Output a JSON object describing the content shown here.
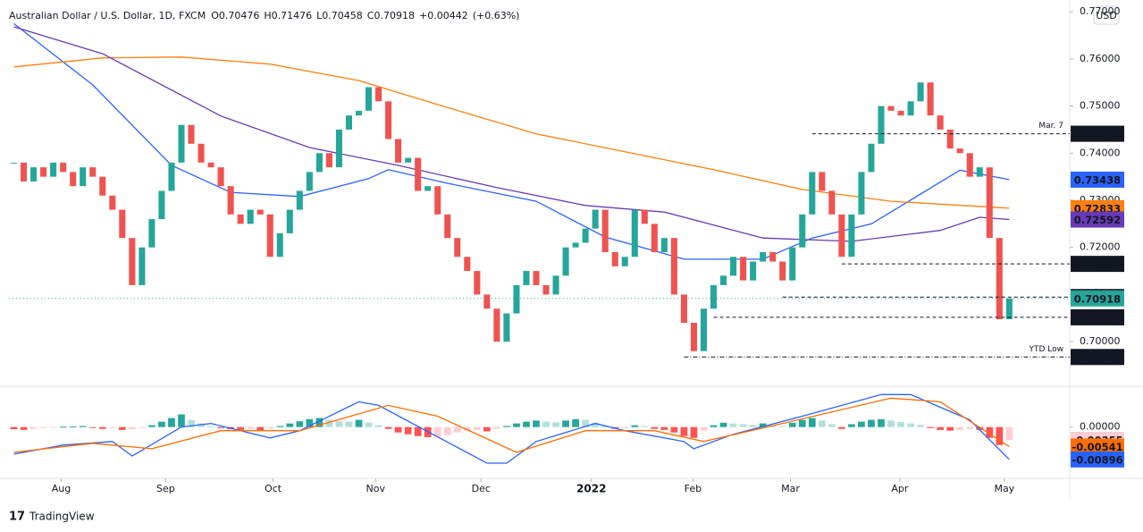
{
  "brand": "TradingView",
  "chart_data": [
    {
      "type": "candlestick",
      "title": "Australian Dollar / U.S. Dollar, 1D, FXCM",
      "stats": [
        {
          "key": "O",
          "value": 0.70476
        },
        {
          "key": "H",
          "value": 0.71476
        },
        {
          "key": "L",
          "value": 0.70458
        },
        {
          "key": "C",
          "value": 0.70918
        },
        {
          "value": 0.00442,
          "label": "+0.00442"
        },
        {
          "value": 0.63,
          "label": "(+0.63%)"
        }
      ],
      "currency": "USD",
      "up_color": "#26a69a",
      "down_color": "#ef5350",
      "closes": [
        0.738,
        0.734,
        0.737,
        0.735,
        0.738,
        0.736,
        0.733,
        0.737,
        0.735,
        0.731,
        0.728,
        0.722,
        0.712,
        0.72,
        0.726,
        0.732,
        0.738,
        0.746,
        0.742,
        0.738,
        0.737,
        0.733,
        0.727,
        0.725,
        0.728,
        0.727,
        0.718,
        0.723,
        0.728,
        0.732,
        0.736,
        0.74,
        0.737,
        0.745,
        0.748,
        0.749,
        0.754,
        0.751,
        0.743,
        0.738,
        0.739,
        0.732,
        0.733,
        0.727,
        0.722,
        0.718,
        0.715,
        0.71,
        0.707,
        0.7,
        0.706,
        0.712,
        0.715,
        0.712,
        0.71,
        0.714,
        0.72,
        0.721,
        0.724,
        0.728,
        0.719,
        0.716,
        0.718,
        0.728,
        0.725,
        0.719,
        0.722,
        0.71,
        0.704,
        0.698,
        0.707,
        0.712,
        0.714,
        0.718,
        0.713,
        0.717,
        0.719,
        0.717,
        0.713,
        0.72,
        0.727,
        0.736,
        0.732,
        0.727,
        0.718,
        0.727,
        0.736,
        0.742,
        0.75,
        0.749,
        0.748,
        0.751,
        0.755,
        0.748,
        0.745,
        0.741,
        0.74,
        0.735,
        0.737,
        0.722,
        0.70476,
        0.70918
      ],
      "xlim": [
        0,
        107
      ],
      "ylim": [
        0.6913,
        0.7725
      ],
      "yticks": [
        {
          "value": 0.7,
          "label": "0.70000"
        },
        {
          "value": 0.71,
          "label": "0.71000"
        },
        {
          "value": 0.72,
          "label": "0.72000"
        },
        {
          "value": 0.73,
          "label": "0.73000"
        },
        {
          "value": 0.74,
          "label": "0.74000"
        },
        {
          "value": 0.75,
          "label": "0.75000"
        },
        {
          "value": 0.76,
          "label": "0.76000"
        },
        {
          "value": 0.77,
          "label": "0.77000"
        }
      ],
      "lines": [
        {
          "color": "#2962ff",
          "x": [
            0,
            8,
            16,
            22,
            29,
            36,
            38,
            44,
            53,
            60,
            68,
            76,
            81,
            87,
            96,
            101
          ],
          "values": [
            0.7675,
            0.7545,
            0.7374,
            0.7317,
            0.7308,
            0.7346,
            0.7365,
            0.7336,
            0.7298,
            0.7222,
            0.7175,
            0.7175,
            0.722,
            0.725,
            0.7364,
            0.73438
          ]
        },
        {
          "color": "#ff7f0e",
          "x": [
            0,
            9,
            17,
            26,
            35,
            44,
            53,
            62,
            71,
            80,
            89,
            101
          ],
          "values": [
            0.7583,
            0.7602,
            0.7604,
            0.7589,
            0.7554,
            0.7497,
            0.7441,
            0.7403,
            0.7365,
            0.7323,
            0.7298,
            0.72833
          ]
        },
        {
          "color": "#673ab7",
          "x": [
            0,
            9,
            21,
            30,
            39,
            49,
            58,
            66,
            76,
            85,
            94,
            98,
            101
          ],
          "values": [
            0.7668,
            0.7611,
            0.7479,
            0.7412,
            0.7374,
            0.7327,
            0.7289,
            0.7275,
            0.722,
            0.7213,
            0.7236,
            0.7264,
            0.72592
          ]
        }
      ],
      "levels": [
        {
          "value": 0.74412,
          "from": 81,
          "note": "Mar. 7"
        },
        {
          "value": 0.71651,
          "from": 84
        },
        {
          "value": 0.70947,
          "from": 78
        },
        {
          "value": 0.70517,
          "from": 71
        },
        {
          "value": 0.69675,
          "from": 68,
          "note": "YTD Low"
        }
      ]
    },
    {
      "type": "macd",
      "histogram": [
        -0.0006,
        -0.0008,
        -0.0005,
        -0.0003,
        -0.0002,
        0.0001,
        0.0002,
        0.0003,
        -0.0002,
        -0.0005,
        -0.0003,
        -0.0008,
        -0.0006,
        -0.0002,
        0.0005,
        0.0015,
        0.0025,
        0.0035,
        0.002,
        0.001,
        0.0003,
        -0.0003,
        -0.0006,
        -0.0008,
        -0.0005,
        -0.0009,
        -0.0004,
        0.0003,
        0.001,
        0.0016,
        0.0022,
        0.0025,
        0.002,
        0.0016,
        0.0015,
        0.002,
        0.0012,
        0.0005,
        -0.0005,
        -0.0015,
        -0.002,
        -0.0025,
        -0.0028,
        -0.0026,
        -0.0022,
        -0.0015,
        -0.001,
        -0.0008,
        -0.0012,
        -0.0005,
        0.0003,
        0.001,
        0.0015,
        0.0018,
        0.0015,
        0.0013,
        0.0018,
        0.0022,
        0.002,
        0.0012,
        0.0003,
        -0.0005,
        -0.0003,
        0.0005,
        0.0003,
        -0.0005,
        -0.0008,
        -0.0015,
        -0.0025,
        -0.003,
        -0.001,
        0.0005,
        0.0012,
        0.001,
        0.0008,
        0.0006,
        0.001,
        0.0005,
        0.0003,
        0.0012,
        0.002,
        0.0025,
        0.0018,
        0.0008,
        -0.0005,
        0.0008,
        0.0015,
        0.002,
        0.0022,
        0.0018,
        0.0014,
        0.001,
        0.0006,
        -0.0003,
        -0.0008,
        -0.001,
        -0.0008,
        -0.0005,
        -0.0008,
        -0.003,
        -0.005,
        -0.00355
      ],
      "series": [
        {
          "color": "#2962ff",
          "x": [
            0,
            5,
            10,
            12,
            17,
            20,
            26,
            29,
            35,
            37,
            48,
            50,
            53,
            59,
            62,
            68,
            69,
            73,
            80,
            88,
            91,
            97,
            101
          ],
          "values": [
            -0.0075,
            -0.005,
            -0.004,
            -0.008,
            0.0,
            0.001,
            -0.003,
            -0.001,
            0.007,
            0.006,
            -0.01,
            -0.01,
            -0.004,
            0.001,
            -0.001,
            -0.004,
            -0.006,
            -0.002,
            0.003,
            0.009,
            0.009,
            0.002,
            -0.00896
          ]
        },
        {
          "color": "#ff6d00",
          "x": [
            0,
            8,
            14,
            21,
            29,
            38,
            43,
            51,
            58,
            65,
            70,
            78,
            89,
            94,
            101
          ],
          "values": [
            -0.007,
            -0.0045,
            -0.006,
            -0.001,
            -0.001,
            0.006,
            0.003,
            -0.007,
            -0.001,
            -0.001,
            -0.004,
            0.001,
            0.008,
            0.007,
            -0.00541
          ]
        }
      ],
      "xlim": [
        0,
        107
      ],
      "ylim": [
        -0.0142,
        0.0113
      ],
      "yticks": [
        {
          "value": 0,
          "label": "0.00000"
        }
      ],
      "xticks": [
        {
          "value": 5.3,
          "label": "Aug"
        },
        {
          "value": 15.9,
          "label": "Sep"
        },
        {
          "value": 26.8,
          "label": "Oct"
        },
        {
          "value": 37.2,
          "label": "Nov"
        },
        {
          "value": 47.9,
          "label": "Dec"
        },
        {
          "value": 59.1,
          "label": "2022"
        },
        {
          "value": 69.4,
          "label": "Feb"
        },
        {
          "value": 79.3,
          "label": "Mar"
        },
        {
          "value": 90.4,
          "label": "Apr"
        },
        {
          "value": 101,
          "label": "May"
        }
      ]
    }
  ]
}
